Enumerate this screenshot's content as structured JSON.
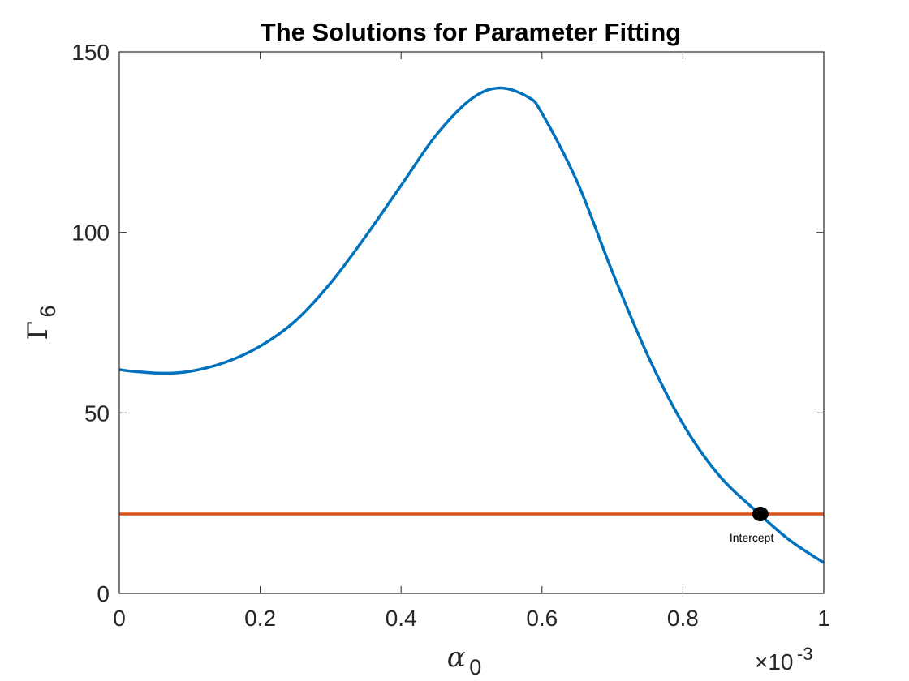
{
  "chart_data": {
    "type": "line",
    "title": "The Solutions for Parameter Fitting",
    "xlabel": {
      "symbol": "α",
      "subscript": "0"
    },
    "ylabel": {
      "symbol": "Γ",
      "subscript": "6"
    },
    "x_exponent": {
      "prefix": "×10",
      "power": "-3"
    },
    "xlim": [
      0,
      1
    ],
    "ylim": [
      0,
      150
    ],
    "xticks": [
      0,
      0.2,
      0.4,
      0.6,
      0.8,
      1
    ],
    "xtick_labels": [
      "0",
      "0.2",
      "0.4",
      "0.6",
      "0.8",
      "1"
    ],
    "yticks": [
      0,
      50,
      100,
      150
    ],
    "ytick_labels": [
      "0",
      "50",
      "100",
      "150"
    ],
    "grid": false,
    "series": [
      {
        "color": "#0072BD",
        "x": [
          0,
          0.02,
          0.06,
          0.1,
          0.15,
          0.2,
          0.25,
          0.3,
          0.35,
          0.4,
          0.45,
          0.5,
          0.54,
          0.58,
          0.6,
          0.65,
          0.7,
          0.75,
          0.8,
          0.85,
          0.9,
          0.95,
          1.0
        ],
        "y": [
          62,
          61.5,
          61,
          61.5,
          64,
          68.5,
          75.5,
          86,
          99,
          113,
          127,
          137,
          140,
          137.5,
          133,
          114,
          89,
          66,
          47,
          33,
          23.5,
          15,
          8.5
        ]
      },
      {
        "color": "#D95319",
        "x": [
          0,
          1
        ],
        "y": [
          22,
          22
        ]
      }
    ],
    "annotations": [
      {
        "text": "Intercept",
        "x": 0.91,
        "y": 22
      }
    ]
  }
}
